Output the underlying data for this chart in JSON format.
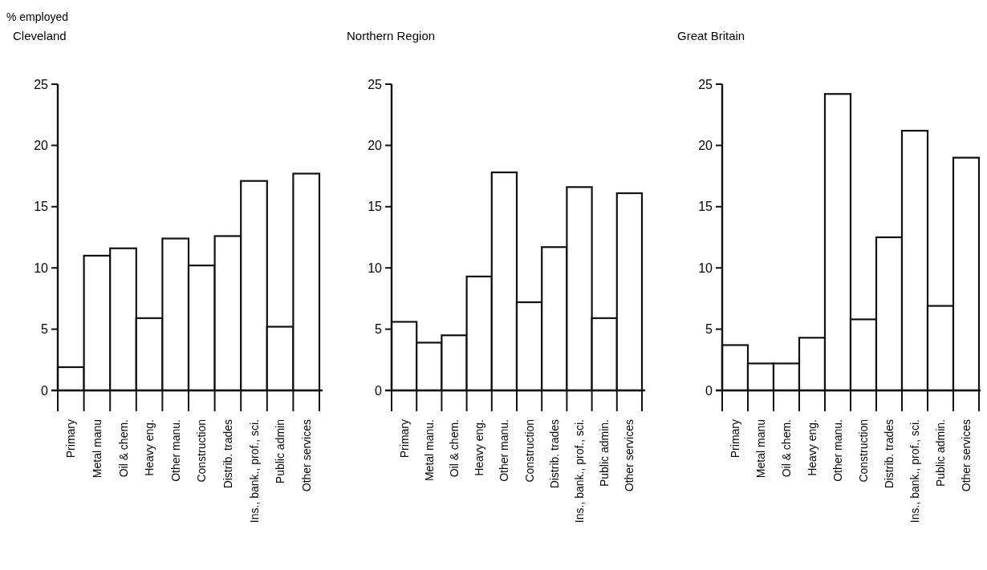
{
  "chart_data": [
    {
      "type": "bar",
      "ylabel": "% employed",
      "title": "Cleveland",
      "categories": [
        "Primary",
        "Metal manu",
        "Oil & chem.",
        "Heavy eng.",
        "Other manu.",
        "Construction",
        "Distrib. trades",
        "Ins., bank., prof., sci.",
        "Public admin",
        "Other services"
      ],
      "values": [
        1.9,
        11.0,
        11.6,
        5.9,
        12.4,
        10.2,
        12.6,
        17.1,
        5.2,
        17.7
      ],
      "color": "#ffffff",
      "ylim": [
        0,
        25
      ],
      "yticks": [
        0,
        5,
        10,
        15,
        20,
        25
      ],
      "grid": false
    },
    {
      "type": "bar",
      "title": "Northern Region",
      "categories": [
        "Primary",
        "Metal manu.",
        "Oil & chem.",
        "Heavy eng.",
        "Other manu.",
        "Construction",
        "Distrib. trades",
        "Ins., bank., prof., sci.",
        "Public admin.",
        "Other services"
      ],
      "values": [
        5.6,
        3.9,
        4.5,
        9.3,
        17.8,
        7.2,
        11.7,
        16.6,
        5.9,
        16.1
      ],
      "color": "#ffffff",
      "ylim": [
        0,
        25
      ],
      "yticks": [
        0,
        5,
        10,
        15,
        20,
        25
      ],
      "grid": false
    },
    {
      "type": "bar",
      "title": "Great Britain",
      "categories": [
        "Primary",
        "Metal manu",
        "Oil & chem.",
        "Heavy eng.",
        "Other manu.",
        "Construction",
        "Distrib. trades",
        "Ins., bank., prof., sci.",
        "Public admin.",
        "Other services"
      ],
      "values": [
        3.7,
        2.2,
        2.2,
        4.3,
        24.2,
        5.8,
        12.5,
        21.2,
        6.9,
        19.0
      ],
      "color": "#ffffff",
      "ylim": [
        0,
        25
      ],
      "yticks": [
        0,
        5,
        10,
        15,
        20,
        25
      ],
      "grid": false
    }
  ]
}
